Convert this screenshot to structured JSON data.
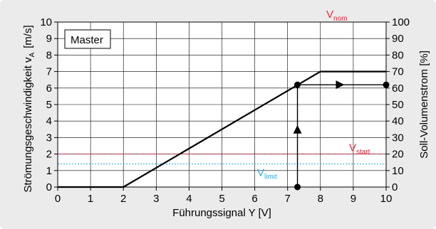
{
  "chart_data": {
    "type": "line",
    "xlabel": "Führungssignal Y [V]",
    "ylabel_left": "Strömungsgeschwindigkeit v",
    "ylabel_left_sub": "A",
    "ylabel_left_unit": "[m/s]",
    "ylabel_right": "Soll-Volumenstrom [%]",
    "xlim": [
      0,
      10
    ],
    "ylim_left": [
      0,
      10
    ],
    "ylim_right": [
      0,
      100
    ],
    "xticks": [
      "0",
      "1",
      "2",
      "3",
      "4",
      "5",
      "6",
      "7",
      "8",
      "9",
      "10"
    ],
    "yticks_left": [
      "0",
      "1",
      "2",
      "3",
      "4",
      "5",
      "6",
      "7",
      "8",
      "9",
      "10"
    ],
    "yticks_right": [
      "0",
      "10",
      "20",
      "30",
      "40",
      "50",
      "60",
      "70",
      "80",
      "90",
      "100"
    ],
    "grid": true,
    "series": [
      {
        "x": [
          0,
          2,
          8,
          10
        ],
        "y": [
          0,
          0,
          7,
          7
        ],
        "color": "#000000"
      }
    ],
    "reference_lines": [
      {
        "label": "V",
        "sub": "nom",
        "y": 10,
        "color": "#e8283c",
        "style": "dashed"
      },
      {
        "label": "V",
        "sub": "start",
        "y": 2,
        "color": "#e8283c",
        "style": "dashed"
      },
      {
        "label": "V",
        "sub": "limit",
        "y": 1.4,
        "color": "#29aee0",
        "style": "dotted"
      }
    ],
    "annotations": {
      "box_label": "Master",
      "reading_example": {
        "x": 7.3,
        "y": 6.2,
        "x_end": 10
      }
    }
  }
}
